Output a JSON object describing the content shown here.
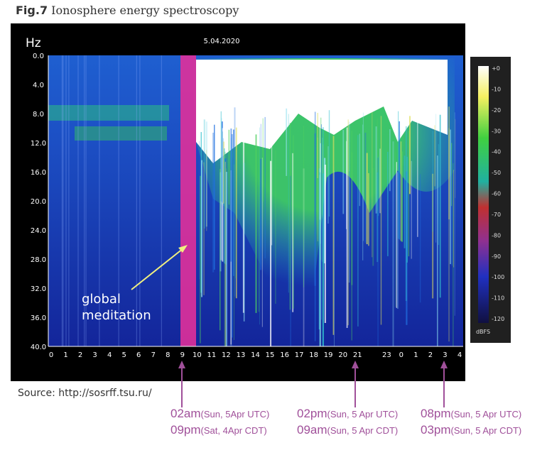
{
  "figure": {
    "label": "Fig.7",
    "title": "Ionosphere energy spectroscopy",
    "unit": "Hz",
    "date": "5.04.2020",
    "y_labels": [
      "0.0",
      "4.0",
      "8.0",
      "12.0",
      "16.0",
      "20.0",
      "24.0",
      "28.0",
      "32.0",
      "36.0",
      "40.0"
    ],
    "x_labels": [
      "0",
      "1",
      "2",
      "3",
      "4",
      "5",
      "6",
      "7",
      "8",
      "9",
      "10",
      "11",
      "12",
      "13",
      "14",
      "15",
      "16",
      "17",
      "18",
      "19",
      "20",
      "21",
      null,
      "23",
      "0",
      "1",
      "2",
      "3",
      "4"
    ],
    "colorbar_labels": [
      "+0",
      "-10",
      "-20",
      "-30",
      "-40",
      "-50",
      "-60",
      "-70",
      "-80",
      "-90",
      "-100",
      "-110",
      "-120"
    ],
    "colorbar_unit": "dBFS",
    "annotation": [
      "global",
      "meditation"
    ],
    "source": "Source: http://sosrff.tsu.ru/",
    "markers": [
      {
        "lines": [
          {
            "time": "02am",
            "detail": "(Sun, 5Apr UTC)"
          },
          {
            "time": "09pm",
            "detail": "(Sat, 4Apr CDT)"
          }
        ]
      },
      {
        "lines": [
          {
            "time": "02pm",
            "detail": "(Sun, 5 Apr UTC)"
          },
          {
            "time": "09am",
            "detail": "(Sun, 5 Apr CDT)"
          }
        ]
      },
      {
        "lines": [
          {
            "time": "08pm",
            "detail": "(Sun, 5 Apr UTC)"
          },
          {
            "time": "03pm",
            "detail": "(Sun, 5 Apr CDT)"
          }
        ]
      }
    ]
  }
}
